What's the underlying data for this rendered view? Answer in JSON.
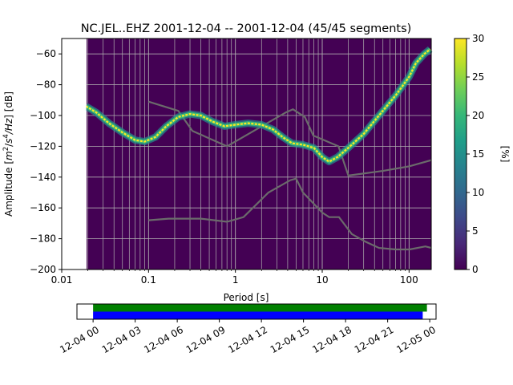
{
  "title": "NC.JEL..EHZ   2001-12-04 -- 2001-12-04  (45/45 segments)",
  "chart_data": [
    {
      "type": "heatmap",
      "subtype": "probabilistic-power-spectral-density",
      "xlabel": "Period [s]",
      "ylabel_parts": [
        "Amplitude [",
        "m",
        "2",
        "/",
        "s",
        "4",
        "/Hz",
        "] [dB]"
      ],
      "x_scale": "log",
      "xlim": [
        0.01,
        180
      ],
      "ylim": [
        -200,
        -50
      ],
      "x_ticks": [
        0.01,
        0.1,
        1,
        10,
        100
      ],
      "x_tick_labels": [
        "0.01",
        "0.1",
        "1",
        "10",
        "100"
      ],
      "y_ticks": [
        -200,
        -180,
        -160,
        -140,
        -120,
        -100,
        -80,
        -60
      ],
      "y_tick_labels": [
        "−200",
        "−180",
        "−160",
        "−140",
        "−120",
        "−100",
        "−80",
        "−60"
      ],
      "data_start_period": 0.019,
      "grid": true,
      "background_color": "#440154",
      "mode_curve": {
        "period": [
          0.019,
          0.025,
          0.035,
          0.05,
          0.07,
          0.09,
          0.12,
          0.16,
          0.22,
          0.3,
          0.4,
          0.55,
          0.75,
          1.0,
          1.4,
          2.0,
          2.7,
          3.5,
          4.5,
          6.0,
          8.0,
          10.0,
          12.0,
          15.0,
          20.0,
          30.0,
          45.0,
          70.0,
          100.0,
          120.0,
          150.0,
          175.0
        ],
        "db": [
          -94,
          -98,
          -105,
          -111,
          -116,
          -117,
          -114,
          -107,
          -101,
          -99,
          -100,
          -104,
          -107,
          -106,
          -105,
          -106,
          -109,
          -114,
          -118,
          -119,
          -121,
          -127,
          -130,
          -127,
          -121,
          -112,
          -100,
          -87,
          -75,
          -66,
          -60,
          -57
        ]
      },
      "peterson_nlnm": {
        "period": [
          0.1,
          0.17,
          0.4,
          0.8,
          1.24,
          2.4,
          4.3,
          5.0,
          6.0,
          10.0,
          12.0,
          15.6,
          21.9,
          31.6,
          45.0,
          70.0,
          101.0,
          154.0,
          180.0
        ],
        "db": [
          -168,
          -167,
          -167,
          -169,
          -166,
          -150,
          -142,
          -141,
          -150,
          -163,
          -166,
          -166,
          -177,
          -182,
          -186,
          -187,
          -187,
          -185,
          -186
        ]
      },
      "peterson_nhnm": {
        "period": [
          0.1,
          0.22,
          0.32,
          0.8,
          3.8,
          4.6,
          6.3,
          7.9,
          15.4,
          20.0,
          50.0,
          100.0,
          180.0
        ],
        "db": [
          -91,
          -97,
          -110,
          -120,
          -98,
          -96,
          -101,
          -113,
          -120,
          -139,
          -136,
          -133,
          -129
        ]
      },
      "colorbar": {
        "label": "[%]",
        "min": 0,
        "max": 30,
        "ticks": [
          0,
          5,
          10,
          15,
          20,
          25,
          30
        ],
        "colors": [
          "#440154",
          "#482878",
          "#3e4989",
          "#31688e",
          "#26828e",
          "#1f9e89",
          "#35b779",
          "#6ece58",
          "#b5de2b",
          "#fde725"
        ]
      }
    },
    {
      "type": "timeline",
      "x_tick_labels": [
        "12-04 00",
        "12-04 03",
        "12-04 06",
        "12-04 09",
        "12-04 12",
        "12-04 15",
        "12-04 18",
        "12-04 21",
        "12-05 00"
      ],
      "x_ticks_hours": [
        0,
        3,
        6,
        9,
        12,
        15,
        18,
        21,
        24
      ],
      "xlim_hours": [
        -1.15,
        24.45
      ],
      "bars": [
        {
          "color": "#008000",
          "start_hour": 0.0,
          "end_hour": 23.8
        },
        {
          "color": "#0000ff",
          "start_hour": 0.0,
          "end_hour": 23.5
        }
      ]
    }
  ]
}
